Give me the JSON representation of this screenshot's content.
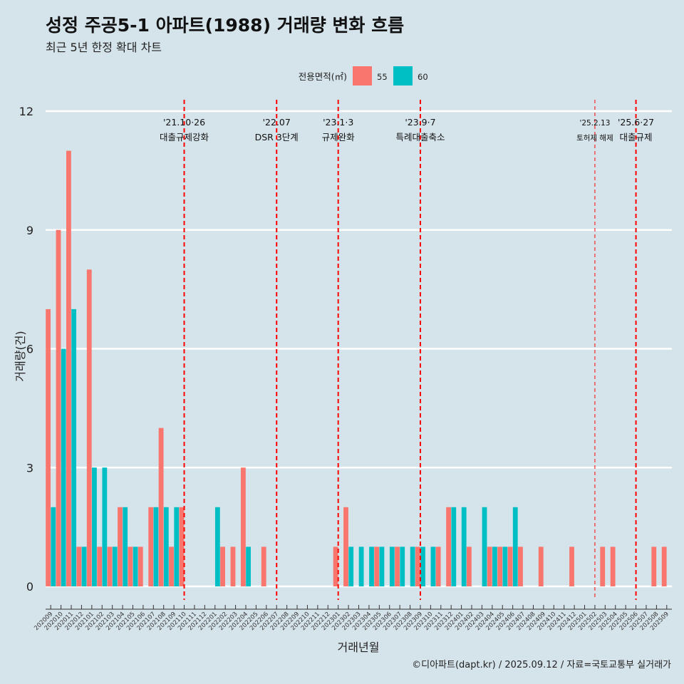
{
  "title": "성정 주공5-1 아파트(1988) 거래량 변화 흐름",
  "subtitle": "최근 5년 한정 확대 차트",
  "caption": "©디아파트(dapt.kr) / 2025.09.12 / 자료=국토교통부 실거래가",
  "chart_data": {
    "type": "bar",
    "xlabel": "거래년월",
    "ylabel": "거래량(건)",
    "ylim": [
      -0.5,
      12
    ],
    "yticks": [
      0,
      3,
      6,
      9,
      12
    ],
    "grid": "horizontal",
    "legend": {
      "title": "전용면적(㎡)",
      "position": "top"
    },
    "categories": [
      "202009",
      "202010",
      "202011",
      "202012",
      "202101",
      "202102",
      "202103",
      "202104",
      "202105",
      "202106",
      "202107",
      "202108",
      "202109",
      "202110",
      "202111",
      "202112",
      "202201",
      "202202",
      "202203",
      "202204",
      "202205",
      "202206",
      "202207",
      "202208",
      "202209",
      "202210",
      "202211",
      "202212",
      "202301",
      "202302",
      "202303",
      "202304",
      "202305",
      "202306",
      "202307",
      "202308",
      "202309",
      "202310",
      "202311",
      "202312",
      "202401",
      "202402",
      "202403",
      "202404",
      "202405",
      "202406",
      "202407",
      "202408",
      "202409",
      "202410",
      "202411",
      "202412",
      "202501",
      "202502",
      "202503",
      "202504",
      "202505",
      "202506",
      "202507",
      "202508",
      "202509"
    ],
    "series": [
      {
        "name": "55",
        "color": "#f8766d",
        "values": [
          7,
          9,
          11,
          1,
          8,
          1,
          1,
          2,
          1,
          1,
          2,
          4,
          1,
          2,
          0,
          0,
          0,
          1,
          1,
          3,
          0,
          1,
          0,
          0,
          0,
          0,
          0,
          0,
          1,
          2,
          0,
          0,
          1,
          0,
          1,
          0,
          1,
          0,
          1,
          2,
          0,
          1,
          0,
          1,
          1,
          1,
          1,
          0,
          1,
          0,
          0,
          1,
          0,
          0,
          1,
          1,
          0,
          0,
          0,
          1,
          1
        ]
      },
      {
        "name": "60",
        "color": "#00bfc4",
        "values": [
          2,
          6,
          7,
          1,
          3,
          3,
          1,
          2,
          1,
          0,
          2,
          2,
          2,
          0,
          0,
          0,
          2,
          0,
          0,
          1,
          0,
          0,
          0,
          0,
          0,
          0,
          0,
          0,
          0,
          1,
          1,
          1,
          1,
          1,
          1,
          1,
          1,
          1,
          0,
          2,
          2,
          0,
          2,
          1,
          1,
          2,
          0,
          0,
          0,
          0,
          0,
          0,
          0,
          0,
          0,
          0,
          0,
          0,
          0,
          0,
          0
        ]
      }
    ],
    "events": [
      {
        "category": "202110",
        "date": "'21.10·26",
        "label": "대출규제강화",
        "style": "bold"
      },
      {
        "category": "202207",
        "date": "'22.07",
        "label": "DSR 3단계",
        "style": "bold"
      },
      {
        "category": "202301",
        "date": "'23.1·3",
        "label": "규제완화",
        "style": "bold"
      },
      {
        "category": "202309",
        "date": "'23.9·7",
        "label": "특례대출축소",
        "style": "bold"
      },
      {
        "category": "202502",
        "date": "'25.2.13",
        "label": "토허제 해제",
        "style": "thin"
      },
      {
        "category": "202506",
        "date": "'25.6·27",
        "label": "대출규제",
        "style": "bold"
      }
    ]
  }
}
